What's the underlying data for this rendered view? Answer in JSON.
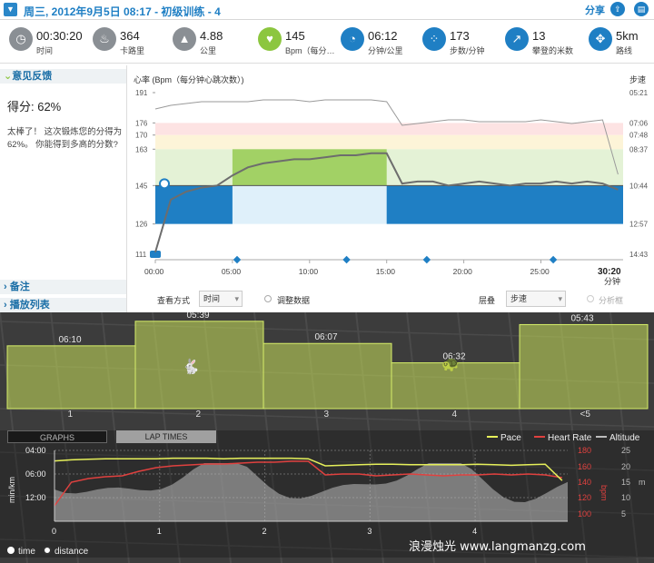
{
  "header": {
    "title": "周三, 2012年9月5日 08:17 - 初级训练 - 4",
    "share_label": "分享"
  },
  "stats": [
    {
      "value": "00:30:20",
      "label": "时间",
      "icon": "clock-icon",
      "color": "#8a8f94"
    },
    {
      "value": "364",
      "label": "卡路里",
      "icon": "flame-icon",
      "color": "#8a8f94"
    },
    {
      "value": "4.88",
      "label": "公里",
      "icon": "road-icon",
      "color": "#8a8f94"
    },
    {
      "value": "145",
      "label": "Bpm（每分…",
      "icon": "heart-icon",
      "color": "#8cc63f"
    },
    {
      "value": "06:12",
      "label": "分钟/公里",
      "icon": "speedometer-icon",
      "color": "#1f7fc4"
    },
    {
      "value": "173",
      "label": "步数/分钟",
      "icon": "footsteps-icon",
      "color": "#1f7fc4"
    },
    {
      "value": "13",
      "label": "攀登的米数",
      "icon": "climb-arrow-icon",
      "color": "#1f7fc4"
    },
    {
      "value": "5km",
      "label": "路线",
      "icon": "route-icon",
      "color": "#1f7fc4"
    }
  ],
  "feedback": {
    "header": "意见反馈",
    "score": "得分: 62%",
    "message": "太棒了！ 这次锻炼您的分得为 62%。 你能得到多高的分数?"
  },
  "notes_label": "备注",
  "playlist_label": "播放列表",
  "hr_chart": {
    "ylabel": "心率 (Bpm（每分钟心跳次数）)",
    "y2label": "步速",
    "yticks": [
      "191",
      "176",
      "170",
      "163",
      "145",
      "126",
      "111"
    ],
    "y2ticks": [
      "05:21",
      "07:06",
      "07:48",
      "08:37",
      "10:44",
      "12:57",
      "14:43"
    ],
    "xticks": [
      "00:00",
      "05:00",
      "10:00",
      "15:00",
      "20:00",
      "25:00"
    ],
    "end_time": "30:20",
    "end_unit": "分钟"
  },
  "chart_controls": {
    "view_label": "查看方式",
    "view_value": "时间",
    "adjust_label": "调整数据",
    "layer_label": "层叠",
    "layer_value": "步速",
    "analyze_label": "分析框"
  },
  "laps": {
    "paces": [
      "06:10",
      "05:39",
      "06:07",
      "06:32",
      "05:43"
    ],
    "labels": [
      "1",
      "2",
      "3",
      "4",
      "<5"
    ],
    "pace_values_min": [
      6.17,
      5.65,
      6.12,
      6.53,
      5.72
    ]
  },
  "lower_chart": {
    "tabs": [
      "GRAPHS",
      "LAP TIMES"
    ],
    "legend": [
      "Pace",
      "Heart Rate",
      "Altitude"
    ],
    "colors": {
      "pace": "#e6f05a",
      "hr": "#e0413f",
      "alt": "#bdbdbd"
    },
    "yleft": [
      "04:00",
      "06:00",
      "12:00"
    ],
    "yleft_label": "min/km",
    "yright_hr": [
      "180",
      "160",
      "140",
      "120",
      "100"
    ],
    "yright_hr_label": "bpm",
    "yright_alt": [
      "25",
      "20",
      "15",
      "10",
      "5"
    ],
    "yright_alt_label": "m",
    "xticks": [
      "0",
      "1",
      "2",
      "3",
      "4"
    ],
    "radio_time": "time",
    "radio_distance": "distance"
  },
  "watermark": "浪漫烛光 www.langmanzg.com",
  "chart_data": {
    "type": "line",
    "title": "心率 (Bpm（每分钟心跳次数）)",
    "xlabel": "分钟",
    "x": [
      0,
      1,
      2,
      3,
      4,
      5,
      6,
      7,
      8,
      9,
      10,
      11,
      12,
      13,
      14,
      15,
      16,
      17,
      18,
      19,
      20,
      21,
      22,
      23,
      24,
      25,
      26,
      27,
      28,
      29,
      30
    ],
    "series": [
      {
        "name": "心率",
        "values": [
          112,
          138,
          142,
          144,
          145,
          150,
          154,
          156,
          157,
          158,
          158,
          159,
          160,
          160,
          161,
          161,
          146,
          147,
          147,
          145,
          146,
          147,
          146,
          145,
          146,
          146,
          147,
          146,
          147,
          146,
          143
        ]
      },
      {
        "name": "步速",
        "values": [
          5.9,
          5.7,
          5.6,
          5.5,
          5.5,
          5.5,
          5.5,
          5.4,
          5.4,
          5.4,
          5.5,
          5.4,
          5.4,
          5.4,
          5.4,
          5.5,
          6.8,
          6.7,
          6.6,
          6.5,
          6.5,
          6.6,
          6.6,
          6.6,
          6.6,
          6.5,
          6.6,
          6.7,
          6.6,
          6.5,
          9.5
        ]
      }
    ],
    "ylim": [
      111,
      191
    ]
  }
}
